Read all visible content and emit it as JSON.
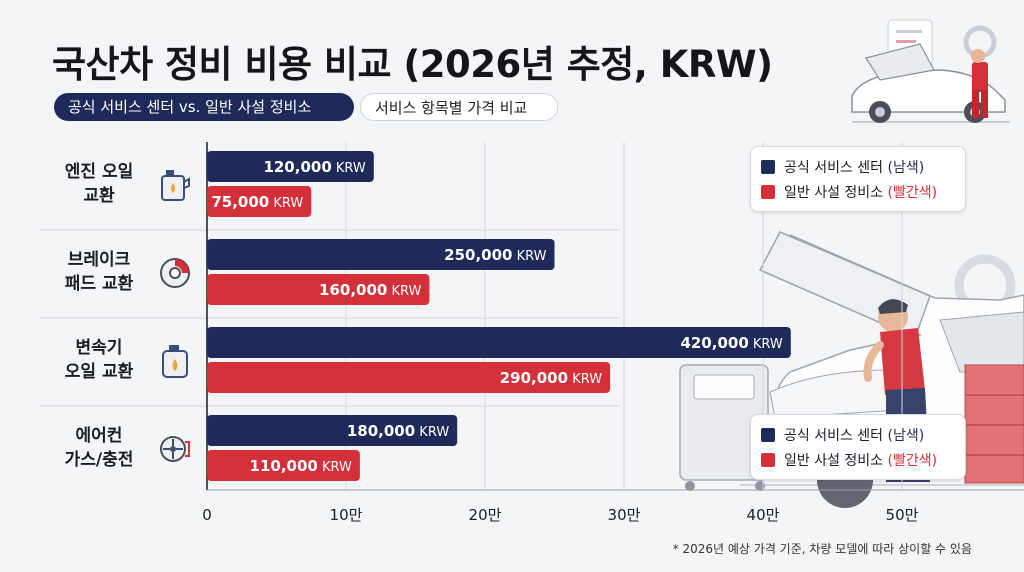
{
  "title": "국산차 정비 비용 비교 (2026년 추정, KRW)",
  "tags": {
    "primary": "공식 서비스 센터 vs. 일반 사설 정비소",
    "secondary": "서비스 항목별 가격 비교"
  },
  "legend": {
    "items": [
      {
        "label": "공식 서비스 센터",
        "note": "(남색)"
      },
      {
        "label": "일반 사설 정비소",
        "note": "(빨간색)"
      }
    ]
  },
  "row_labels": [
    {
      "line1": "엔진 오일",
      "line2": "교환",
      "icon": "oil-can-icon"
    },
    {
      "line1": "브레이크",
      "line2": "패드 교환",
      "icon": "brake-disc-icon"
    },
    {
      "line1": "변속기",
      "line2": "오일 교환",
      "icon": "transmission-oil-icon"
    },
    {
      "line1": "에어컨",
      "line2": "가스/충전",
      "icon": "ac-fan-icon"
    }
  ],
  "footnote": "* 2026년 예상 가격 기준, 차량 모델에 따라 상이할 수 있음",
  "colors": {
    "official": "#1e2a5a",
    "private": "#d4303a"
  },
  "chart_data": {
    "type": "bar",
    "orientation": "horizontal",
    "categories": [
      "엔진 오일 교환",
      "브레이크 패드 교환",
      "변속기 오일 교환",
      "에어컨 가스/충전"
    ],
    "series": [
      {
        "name": "공식 서비스 센터",
        "values": [
          120000,
          250000,
          420000,
          180000
        ],
        "labels": [
          "120,000 KRW",
          "250,000 KRW",
          "420,000 KRW",
          "180,000 KRW"
        ]
      },
      {
        "name": "일반 사설 정비소",
        "values": [
          75000,
          160000,
          290000,
          110000
        ],
        "labels": [
          "75,000 KRW",
          "160,000 KRW",
          "290,000 KRW",
          "110,000 KRW"
        ]
      }
    ],
    "xlim": [
      0,
      600000
    ],
    "xticks": [
      0,
      100000,
      200000,
      300000,
      400000,
      500000
    ],
    "xtick_labels": [
      "0",
      "10만",
      "20만",
      "30만",
      "40만",
      "50만"
    ],
    "grid": "vertical",
    "legend_position": "top-right, repeated bottom-right"
  }
}
